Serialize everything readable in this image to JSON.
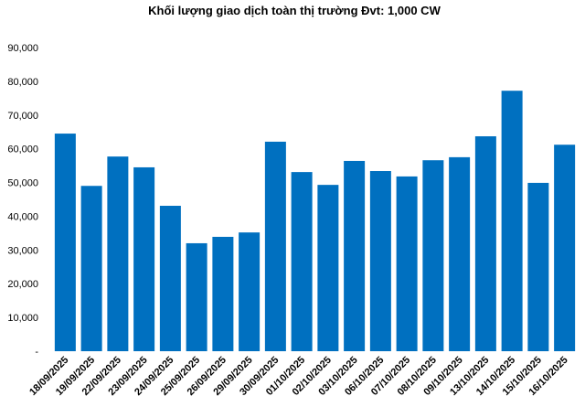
{
  "chart_data": {
    "type": "bar",
    "title": "Khối lượng giao dịch toàn thị trường Đvt: 1,000 CW",
    "categories": [
      "18/09/2025",
      "19/09/2025",
      "22/09/2025",
      "23/09/2025",
      "24/09/2025",
      "25/09/2025",
      "26/09/2025",
      "29/09/2025",
      "30/09/2025",
      "01/10/2025",
      "02/10/2025",
      "03/10/2025",
      "06/10/2025",
      "07/10/2025",
      "08/10/2025",
      "09/10/2025",
      "13/10/2025",
      "14/10/2025",
      "15/10/2025",
      "16/10/2025"
    ],
    "values": [
      64500,
      49000,
      57700,
      54500,
      43100,
      32000,
      33900,
      35200,
      62100,
      53100,
      49300,
      56400,
      53400,
      51800,
      56600,
      57500,
      63700,
      77200,
      49900,
      61200
    ],
    "color": "#0070c0",
    "ylim": [
      0,
      90000
    ],
    "yticks": [
      {
        "value": 0,
        "label": "-"
      },
      {
        "value": 10000,
        "label": "10,000"
      },
      {
        "value": 20000,
        "label": "20,000"
      },
      {
        "value": 30000,
        "label": "30,000"
      },
      {
        "value": 40000,
        "label": "40,000"
      },
      {
        "value": 50000,
        "label": "50,000"
      },
      {
        "value": 60000,
        "label": "60,000"
      },
      {
        "value": 70000,
        "label": "70,000"
      },
      {
        "value": 80000,
        "label": "80,000"
      },
      {
        "value": 90000,
        "label": "90,000"
      }
    ],
    "grid": false
  }
}
